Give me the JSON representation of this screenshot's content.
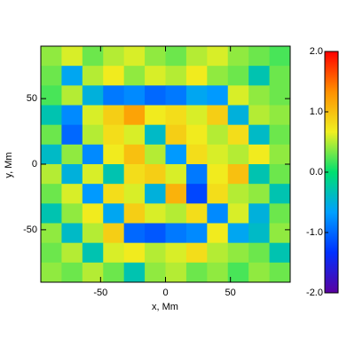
{
  "chart_data": {
    "type": "heatmap",
    "xlabel": "x, Mm",
    "ylabel": "y, Mm",
    "xlim": [
      -96,
      96
    ],
    "ylim": [
      -90,
      90
    ],
    "xticks": [
      -50,
      0,
      50
    ],
    "yticks": [
      -50,
      0,
      50
    ],
    "clim": [
      -2,
      2
    ],
    "cticks": [
      {
        "value": -2,
        "label": "-2.0"
      },
      {
        "value": -1,
        "label": "-1.0"
      },
      {
        "value": 0,
        "label": "0.0"
      },
      {
        "value": 1,
        "label": "1.0"
      },
      {
        "value": 2,
        "label": "2.0"
      }
    ],
    "colormap": [
      "#5a00a0",
      "#0030ff",
      "#00a0ff",
      "#00e070",
      "#f0f020",
      "#ff9000",
      "#ff0000"
    ],
    "z": [
      [
        0.4,
        0.6,
        0.3,
        0.5,
        0.6,
        0.4,
        0.3,
        0.5,
        0.6,
        0.4,
        0.3,
        0.2
      ],
      [
        0.3,
        -0.6,
        0.5,
        0.7,
        0.4,
        0.6,
        0.5,
        0.7,
        0.4,
        0.3,
        -0.3,
        0.3
      ],
      [
        0.2,
        0.5,
        -0.5,
        -0.9,
        -0.8,
        -1.0,
        -0.9,
        -0.6,
        -0.7,
        0.6,
        0.4,
        0.3
      ],
      [
        -0.3,
        -0.8,
        0.6,
        0.9,
        1.2,
        0.7,
        0.8,
        0.6,
        0.9,
        -0.5,
        0.5,
        0.4
      ],
      [
        0.3,
        -1.0,
        0.5,
        0.8,
        0.6,
        -0.4,
        0.9,
        0.7,
        0.5,
        0.8,
        -0.4,
        0.3
      ],
      [
        -0.4,
        0.4,
        -0.8,
        0.7,
        1.0,
        0.5,
        -0.7,
        0.8,
        0.6,
        0.5,
        0.7,
        0.4
      ],
      [
        0.5,
        -0.5,
        0.6,
        -0.3,
        0.8,
        0.9,
        0.6,
        -0.9,
        0.7,
        1.0,
        -0.3,
        0.3
      ],
      [
        0.3,
        0.6,
        -0.7,
        0.8,
        0.6,
        -0.5,
        1.1,
        -1.2,
        0.8,
        0.5,
        0.4,
        -0.3
      ],
      [
        -0.3,
        0.4,
        0.7,
        -0.6,
        0.9,
        0.6,
        0.5,
        0.8,
        -0.8,
        0.6,
        -0.5,
        0.3
      ],
      [
        0.4,
        -0.4,
        0.5,
        0.9,
        -1.0,
        -1.1,
        -0.9,
        -0.8,
        0.7,
        -0.6,
        -0.4,
        0.4
      ],
      [
        0.3,
        0.5,
        -0.3,
        0.6,
        0.7,
        0.5,
        0.6,
        0.8,
        0.5,
        0.4,
        0.3,
        -0.3
      ],
      [
        0.4,
        0.3,
        0.5,
        0.3,
        -0.3,
        0.4,
        0.5,
        0.3,
        0.4,
        0.2,
        0.4,
        0.3
      ]
    ]
  }
}
